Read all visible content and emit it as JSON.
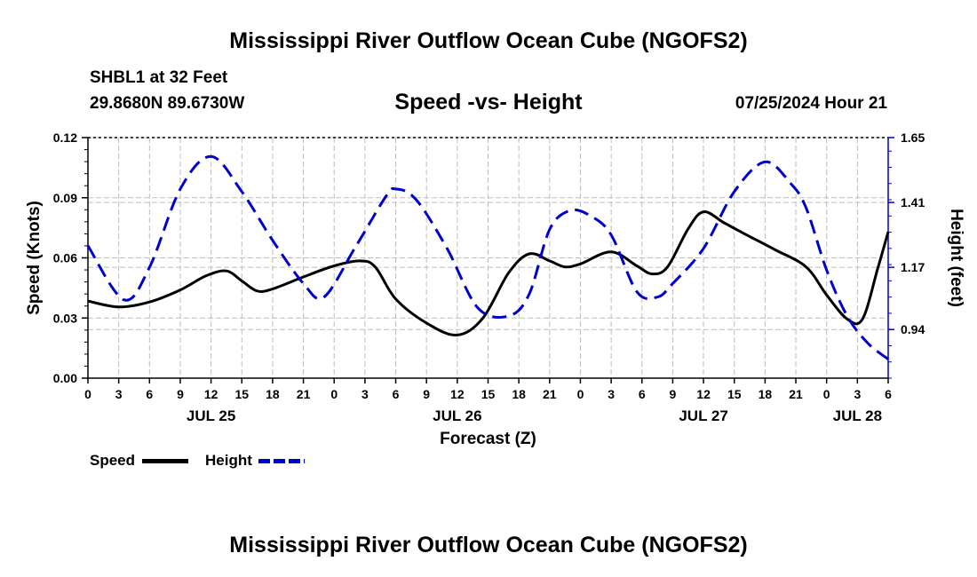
{
  "header": {
    "title_top": "Mississippi River Outflow Ocean Cube (NGOFS2)",
    "station": "SHBL1 at 32 Feet",
    "coords": "29.8680N  89.6730W",
    "subtitle": "Speed -vs- Height",
    "datetime": "07/25/2024 Hour 21",
    "title_bottom": "Mississippi River Outflow Ocean Cube (NGOFS2)"
  },
  "legend": {
    "speed_label": "Speed",
    "height_label": "Height"
  },
  "colors": {
    "speed": "#000000",
    "height": "#0000cc",
    "grid": "#bdbdbd"
  },
  "chart_data": {
    "type": "line",
    "title": "Speed -vs- Height",
    "xlabel": "Forecast (Z)",
    "ylabel": "Speed (Knots)",
    "y2label": "Height (feet)",
    "xlim": [
      0,
      78
    ],
    "ylim": [
      0,
      0.12
    ],
    "y2lim": [
      0.76,
      1.65
    ],
    "x_ticks": [
      0,
      3,
      6,
      9,
      12,
      15,
      18,
      21,
      24,
      27,
      30,
      33,
      36,
      39,
      42,
      45,
      48,
      51,
      54,
      57,
      60,
      63,
      66,
      69,
      72,
      75,
      78
    ],
    "x_tick_labels": [
      "0",
      "3",
      "6",
      "9",
      "12",
      "15",
      "18",
      "21",
      "0",
      "3",
      "6",
      "9",
      "12",
      "15",
      "18",
      "21",
      "0",
      "3",
      "6",
      "9",
      "12",
      "15",
      "18",
      "21",
      "0",
      "3",
      "6"
    ],
    "date_labels": [
      {
        "x": 12,
        "label": "JUL 25"
      },
      {
        "x": 36,
        "label": "JUL 26"
      },
      {
        "x": 60,
        "label": "JUL 27"
      },
      {
        "x": 75,
        "label": "JUL 28"
      }
    ],
    "y_ticks": [
      0.0,
      0.03,
      0.06,
      0.09,
      0.12
    ],
    "y_tick_labels": [
      "0.00",
      "0.03",
      "0.06",
      "0.09",
      "0.12"
    ],
    "y2_ticks": [
      0.94,
      1.17,
      1.41,
      1.65
    ],
    "y2_tick_labels": [
      "0.94",
      "1.17",
      "1.41",
      "1.65"
    ],
    "grid": true,
    "legend_position": "bottom-left",
    "series": [
      {
        "name": "Speed",
        "axis": "left",
        "style": "solid",
        "x": [
          0,
          3,
          6,
          9,
          11.5,
          13.5,
          15,
          16.5,
          18,
          21,
          24,
          26.5,
          28,
          30,
          33,
          36,
          38.5,
          41,
          43,
          45,
          46.5,
          48,
          51,
          53.5,
          55,
          56.5,
          58.5,
          60,
          62,
          64,
          67,
          70,
          72,
          74,
          75.5,
          77,
          78
        ],
        "values": [
          0.0385,
          0.0355,
          0.038,
          0.044,
          0.051,
          0.0535,
          0.0485,
          0.0435,
          0.0445,
          0.0505,
          0.056,
          0.0585,
          0.0555,
          0.0395,
          0.0275,
          0.0215,
          0.03,
          0.0525,
          0.062,
          0.0585,
          0.0555,
          0.057,
          0.063,
          0.056,
          0.052,
          0.0555,
          0.0745,
          0.083,
          0.0775,
          0.072,
          0.064,
          0.0555,
          0.0415,
          0.0295,
          0.0295,
          0.055,
          0.073
        ]
      },
      {
        "name": "Height",
        "axis": "right",
        "style": "dashed",
        "x": [
          0,
          3.5,
          6,
          9,
          12,
          15,
          18,
          21,
          23,
          26,
          29,
          30,
          32,
          35,
          38,
          41,
          43,
          45,
          47,
          49,
          51,
          53.5,
          55.5,
          57,
          60,
          63,
          66,
          68.5,
          70,
          72,
          74,
          76,
          78
        ],
        "values": [
          1.25,
          1.05,
          1.17,
          1.46,
          1.58,
          1.45,
          1.27,
          1.11,
          1.06,
          1.24,
          1.43,
          1.46,
          1.42,
          1.24,
          1.02,
          0.99,
          1.07,
          1.31,
          1.38,
          1.36,
          1.29,
          1.08,
          1.06,
          1.11,
          1.24,
          1.45,
          1.56,
          1.48,
          1.39,
          1.16,
          0.99,
          0.89,
          0.83
        ]
      }
    ]
  }
}
